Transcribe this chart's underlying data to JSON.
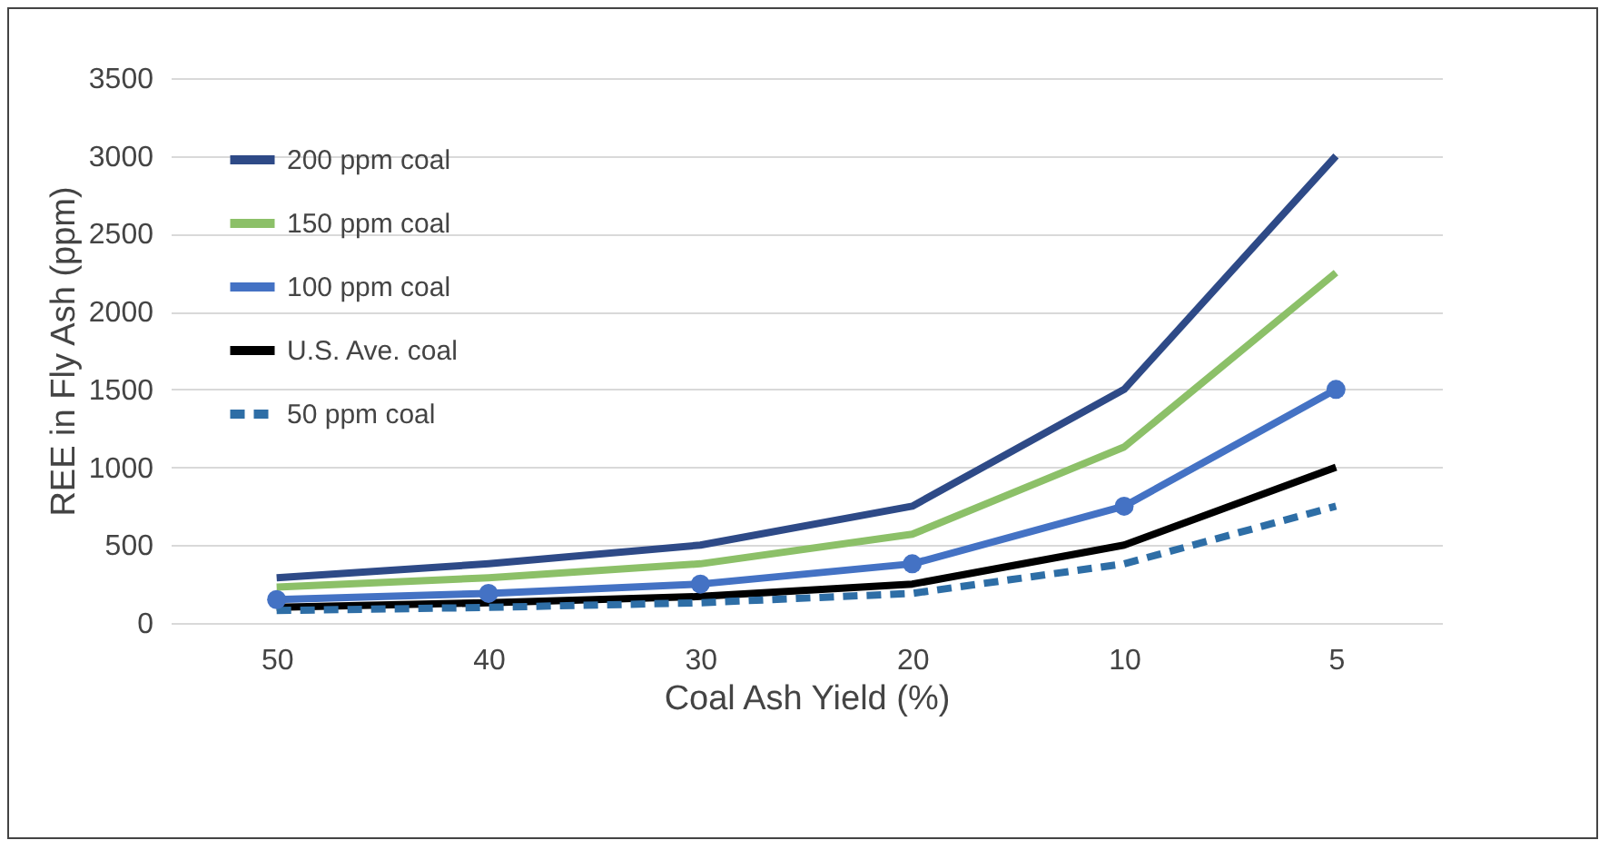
{
  "chart_data": {
    "type": "line",
    "xlabel": "Coal Ash Yield (%)",
    "ylabel": "REE  in Fly Ash (ppm)",
    "categories": [
      "50",
      "40",
      "30",
      "20",
      "10",
      "5"
    ],
    "ylim": [
      0,
      3500
    ],
    "yticks": [
      0,
      500,
      1000,
      1500,
      2000,
      2500,
      3000,
      3500
    ],
    "grid": "y",
    "legend": "top left",
    "series": [
      {
        "name": "200 ppm coal",
        "color": "#2e4a87",
        "values": [
          290,
          380,
          500,
          750,
          1500,
          3000
        ],
        "marker": "none",
        "line_style": "solid"
      },
      {
        "name": "150 ppm coal",
        "color": "#8cc068",
        "values": [
          230,
          290,
          380,
          570,
          1130,
          2250
        ],
        "marker": "none",
        "line_style": "solid"
      },
      {
        "name": "100 ppm coal",
        "color": "#4472c4",
        "values": [
          150,
          190,
          250,
          380,
          750,
          1500
        ],
        "marker": "circle",
        "line_style": "solid"
      },
      {
        "name": "U.S. Ave. coal",
        "color": "#000000",
        "values": [
          100,
          130,
          170,
          250,
          500,
          1000
        ],
        "marker": "none",
        "line_style": "solid"
      },
      {
        "name": "50 ppm coal",
        "color": "#2e6ea6",
        "values": [
          80,
          100,
          130,
          190,
          380,
          750
        ],
        "marker": "none",
        "line_style": "dashed"
      }
    ]
  }
}
